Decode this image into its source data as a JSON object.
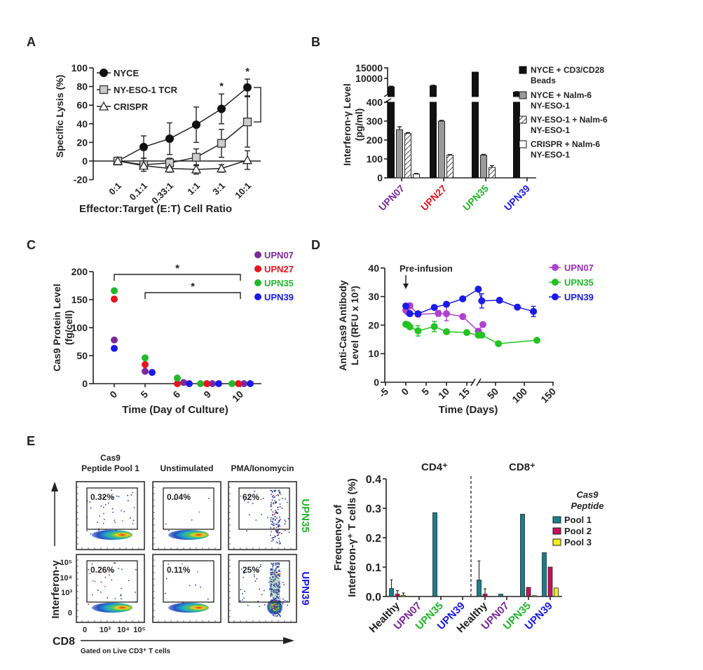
{
  "panels": [
    "A",
    "B",
    "C",
    "D",
    "E"
  ],
  "colors": {
    "UPN07": "#7b2a9b",
    "UPN27": "#e8141e",
    "UPN35": "#22b82a",
    "UPN39": "#1a1ae8",
    "Healthy": "#222222",
    "UPN07_line": "#b040d0",
    "pool1": "#17808f",
    "pool2": "#c8105f",
    "pool3": "#f2ee1a"
  },
  "chart_data": [
    {
      "panel": "A",
      "type": "line",
      "categories": [
        "0:1",
        "0.1:1",
        "0.33:1",
        "1:1",
        "3:1",
        "10:1"
      ],
      "xlabel": "Effector:Target (E:T) Cell Ratio",
      "ylabel": "Specific Lysis (%)",
      "ylim": [
        -20,
        100
      ],
      "yticks": [
        -20,
        0,
        20,
        40,
        60,
        80,
        100
      ],
      "legend": "top-left",
      "series": [
        {
          "name": "NYCE",
          "marker": "filled-circle",
          "values": [
            0,
            15,
            24,
            39,
            56,
            79
          ],
          "errors": [
            0,
            12,
            17,
            19,
            16,
            9
          ]
        },
        {
          "name": "NY-ESO-1 TCR",
          "marker": "gray-square",
          "values": [
            0,
            -4,
            -2,
            4,
            19,
            42
          ],
          "errors": [
            0,
            7,
            5,
            9,
            15,
            27
          ]
        },
        {
          "name": "CRISPR",
          "marker": "open-triangle",
          "values": [
            0,
            -5,
            -8,
            -9,
            -8,
            1
          ],
          "errors": [
            0,
            3,
            4,
            5,
            4,
            10
          ]
        }
      ],
      "annotations": [
        {
          "category": "3:1",
          "text": "*"
        },
        {
          "category": "10:1",
          "text": "*"
        }
      ]
    },
    {
      "panel": "B",
      "type": "bar",
      "categories": [
        "UPN07",
        "UPN27",
        "UPN35",
        "UPN39"
      ],
      "ylabel_lines": [
        "Interferon-γ Level",
        "(pg/ml)"
      ],
      "yticks_lower": [
        0,
        100,
        200,
        300,
        400
      ],
      "yticks_upper": [
        10000,
        15000
      ],
      "axis_break": [
        400,
        5000
      ],
      "legend": "right",
      "series": [
        {
          "name_lines": [
            "NYCE + CD3/CD28",
            "Beads"
          ],
          "fill": "#111111",
          "values": [
            6000,
            6500,
            13000,
            3500
          ],
          "errors": [
            300,
            250,
            0,
            200
          ]
        },
        {
          "name_lines": [
            "NYCE + Nalm-6",
            "NY-ESO-1"
          ],
          "fill": "#9a9a9a",
          "values": [
            255,
            300,
            120,
            0
          ],
          "errors": [
            15,
            4,
            4,
            0
          ]
        },
        {
          "name_lines": [
            "NY-ESO-1 + Nalm-6",
            "NY-ESO-1"
          ],
          "fill": "hatch",
          "values": [
            235,
            120,
            55,
            0
          ],
          "errors": [
            4,
            3,
            10,
            0
          ]
        },
        {
          "name_lines": [
            "CRISPR + Nalm-6",
            "NY-ESO-1"
          ],
          "fill": "#ffffff",
          "values": [
            20,
            0,
            0,
            0
          ],
          "errors": [
            3,
            0,
            0,
            0
          ]
        }
      ]
    },
    {
      "panel": "C",
      "type": "scatter",
      "categories": [
        "0",
        "5",
        "6",
        "9",
        "10"
      ],
      "xlabel": "Time (Day of Culture)",
      "ylabel_lines": [
        "Cas9 Protein Level",
        "(fg/cell)"
      ],
      "ylim": [
        0,
        200
      ],
      "yticks": [
        0,
        50,
        100,
        150,
        200
      ],
      "legend": "right",
      "series": [
        {
          "name": "UPN07",
          "color": "#7b2a9b",
          "values": [
            78,
            22,
            2,
            0,
            0
          ]
        },
        {
          "name": "UPN27",
          "color": "#e8141e",
          "values": [
            151,
            34,
            0,
            0,
            0
          ]
        },
        {
          "name": "UPN35",
          "color": "#22b82a",
          "values": [
            166,
            46,
            10,
            0,
            0
          ]
        },
        {
          "name": "UPN39",
          "color": "#1a1ae8",
          "values": [
            63,
            20,
            0,
            0,
            0
          ]
        }
      ],
      "comparisons": [
        {
          "from": "0",
          "to": "10",
          "text": "*"
        },
        {
          "from": "5",
          "to": "10",
          "text": "*"
        }
      ]
    },
    {
      "panel": "D",
      "type": "line",
      "xlabel": "Time (Days)",
      "ylabel_lines": [
        "Anti-Cas9 Antibody",
        "Level (RFU x 10³)"
      ],
      "ylim": [
        0,
        40
      ],
      "yticks": [
        0,
        10,
        20,
        30,
        40
      ],
      "xticks": [
        "-5",
        "0",
        "5",
        "10",
        "15",
        "50",
        "100",
        "150"
      ],
      "x_axis_break": [
        15,
        20
      ],
      "annotation": "Pre-infusion",
      "legend": "top-right",
      "series": [
        {
          "name": "UPN07",
          "color": "#b040d0",
          "label_color": "#9a2fb5",
          "x": [
            0,
            0.5,
            1,
            3,
            8,
            10,
            14,
            20,
            28
          ],
          "y": [
            25.2,
            24.5,
            26.8,
            23.8,
            24.1,
            24.0,
            23.0,
            17.9,
            20.2
          ],
          "errors": [
            0,
            0,
            0,
            0,
            1,
            2.5,
            0,
            0,
            0
          ]
        },
        {
          "name": "UPN35",
          "color": "#22c322",
          "label_color": "#22b82a",
          "x": [
            0,
            0.5,
            1,
            3,
            7,
            10,
            15,
            20,
            26,
            55,
            122
          ],
          "y": [
            20.3,
            20.1,
            19.4,
            18.0,
            19.5,
            17.7,
            17.4,
            16.5,
            16.5,
            13.5,
            14.7
          ],
          "errors": [
            0,
            0,
            0,
            1.8,
            1.8,
            0,
            0,
            0,
            0,
            0,
            0
          ]
        },
        {
          "name": "UPN39",
          "color": "#1a1ae8",
          "label_color": "#1a1ae8",
          "x": [
            0,
            1,
            3,
            7,
            10,
            14,
            20,
            26,
            57,
            88,
            116
          ],
          "y": [
            26.7,
            24.0,
            24.0,
            26.2,
            27.3,
            29.2,
            32.6,
            28.5,
            28.7,
            26.3,
            24.8
          ],
          "errors": [
            0,
            0,
            0,
            0,
            0.8,
            0,
            0,
            2.5,
            0,
            0,
            1.8
          ]
        }
      ]
    },
    {
      "panel": "E-flow",
      "type": "scatter",
      "columns": [
        [
          "Cas9",
          "Peptide Pool 1"
        ],
        [
          "Unstimulated"
        ],
        [
          "PMA/Ionomycin"
        ]
      ],
      "rows": [
        "UPN35",
        "UPN39"
      ],
      "gate_percentages": [
        [
          "0.32%",
          "0.04%",
          "62%"
        ],
        [
          "0.26%",
          "0.11%",
          "25%"
        ]
      ],
      "ylabel": "Interferon-γ",
      "xlabel": "CD8",
      "note": "Gated on Live CD3⁺ T cells",
      "yticks": [
        "10⁵",
        "10⁴",
        "10³",
        "0"
      ],
      "xticks": [
        "0",
        "10³",
        "10⁴",
        "10⁵"
      ]
    },
    {
      "panel": "E-bar",
      "type": "bar",
      "groups": [
        "CD4⁺",
        "CD8⁺"
      ],
      "categories": [
        "Healthy",
        "UPN07",
        "UPN35",
        "UPN39"
      ],
      "ylabel_lines": [
        "Frequency of",
        "Interferon-γ⁺ T cells (%)"
      ],
      "ylim": [
        0,
        0.4
      ],
      "yticks": [
        "0.0",
        "0.1",
        "0.2",
        "0.3",
        "0.4"
      ],
      "legend_title_lines": [
        "Cas9",
        "Peptide"
      ],
      "legend": "right",
      "series": [
        {
          "name": "Pool 1",
          "color": "#17808f",
          "values": [
            [
              0.027,
              0,
              0.285,
              0
            ],
            [
              0.056,
              0.008,
              0.28,
              0.149
            ]
          ],
          "errors": [
            [
              0.03,
              0,
              0,
              0
            ],
            [
              0.065,
              0,
              0,
              0
            ]
          ]
        },
        {
          "name": "Pool 2",
          "color": "#c8105f",
          "values": [
            [
              0.008,
              0,
              0,
              0
            ],
            [
              0.008,
              0,
              0.031,
              0.1
            ]
          ],
          "errors": [
            [
              0.012,
              0,
              0,
              0
            ],
            [
              0.018,
              0,
              0,
              0
            ]
          ]
        },
        {
          "name": "Pool 3",
          "color": "#f2ee1a",
          "values": [
            [
              0.004,
              0,
              0,
              0
            ],
            [
              0,
              0,
              0.003,
              0.029
            ]
          ],
          "errors": [
            [
              0.008,
              0,
              0,
              0
            ],
            [
              0,
              0,
              0,
              0
            ]
          ]
        }
      ]
    }
  ]
}
